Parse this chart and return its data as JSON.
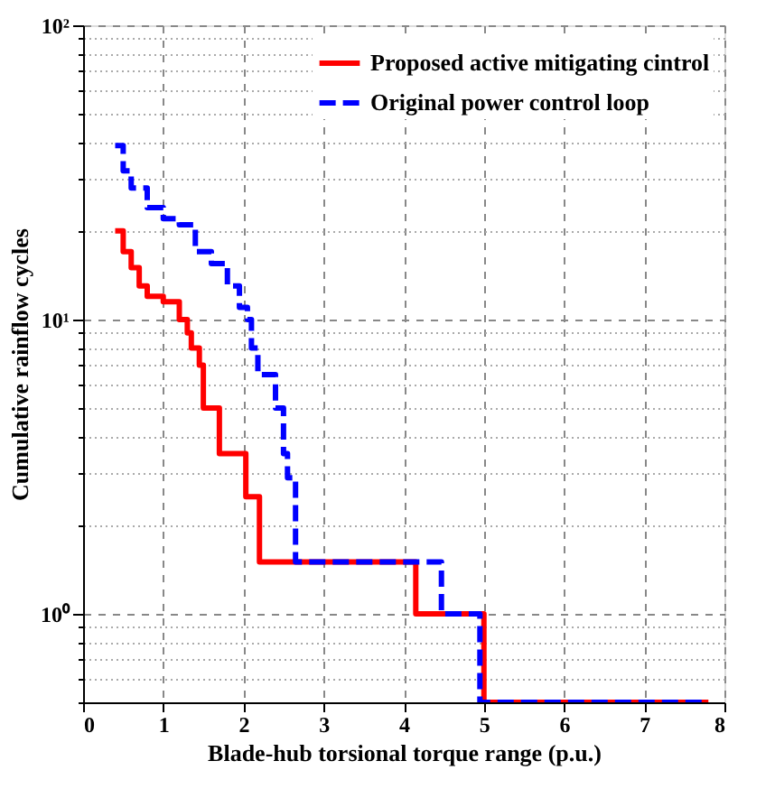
{
  "chart_data": {
    "type": "step",
    "xlabel": "Blade-hub torsional torque range (p.u.)",
    "ylabel": "Cumulative rainflow cycles",
    "log": "y",
    "grid": true,
    "legend": "top right",
    "xlim": [
      0,
      8
    ],
    "xticks": [
      0,
      1,
      2,
      3,
      4,
      5,
      6,
      7,
      8
    ],
    "ylim": [
      0.5,
      100
    ],
    "yticks": [
      {
        "value": 0.5,
        "label": null
      },
      {
        "value": 0.6,
        "label": null
      },
      {
        "value": 0.7,
        "label": null
      },
      {
        "value": 0.8,
        "label": null
      },
      {
        "value": 0.9,
        "label": null
      },
      {
        "value": 1,
        "label": "10⁰"
      },
      {
        "value": 2,
        "label": null
      },
      {
        "value": 3,
        "label": null
      },
      {
        "value": 4,
        "label": null
      },
      {
        "value": 5,
        "label": null
      },
      {
        "value": 6,
        "label": null
      },
      {
        "value": 7,
        "label": null
      },
      {
        "value": 8,
        "label": null
      },
      {
        "value": 9,
        "label": null
      },
      {
        "value": 10,
        "label": "10¹"
      },
      {
        "value": 20,
        "label": null
      },
      {
        "value": 30,
        "label": null
      },
      {
        "value": 40,
        "label": null
      },
      {
        "value": 50,
        "label": null
      },
      {
        "value": 60,
        "label": null
      },
      {
        "value": 70,
        "label": null
      },
      {
        "value": 80,
        "label": null
      },
      {
        "value": 90,
        "label": null
      },
      {
        "value": 100,
        "label": "10²"
      }
    ],
    "series": [
      {
        "name": "Proposed active mitigating cintrol",
        "color": "#ff0000",
        "line_style": "solid",
        "x": [
          0.4,
          0.5,
          0.6,
          0.7,
          0.8,
          1.0,
          1.2,
          1.3,
          1.35,
          1.45,
          1.5,
          1.7,
          2.03,
          2.2,
          4.15,
          5.0,
          7.8
        ],
        "values": [
          20,
          17,
          15,
          13,
          12,
          11.5,
          10,
          9,
          8,
          7,
          5,
          3.5,
          2.5,
          1.5,
          1,
          0.5,
          0.5
        ]
      },
      {
        "name": "Original power control loop",
        "color": "#0000ff",
        "line_style": "dashed",
        "x": [
          0.4,
          0.5,
          0.6,
          0.8,
          1.0,
          1.2,
          1.4,
          1.6,
          1.8,
          1.95,
          2.05,
          2.1,
          2.18,
          2.4,
          2.5,
          2.55,
          2.65,
          4.47,
          4.95,
          7.8
        ],
        "values": [
          39,
          32,
          28,
          24,
          22,
          21,
          17,
          15.5,
          13,
          11,
          10,
          8,
          6.5,
          5,
          3.5,
          2.9,
          1.5,
          1,
          0.5,
          0.5
        ]
      }
    ]
  }
}
